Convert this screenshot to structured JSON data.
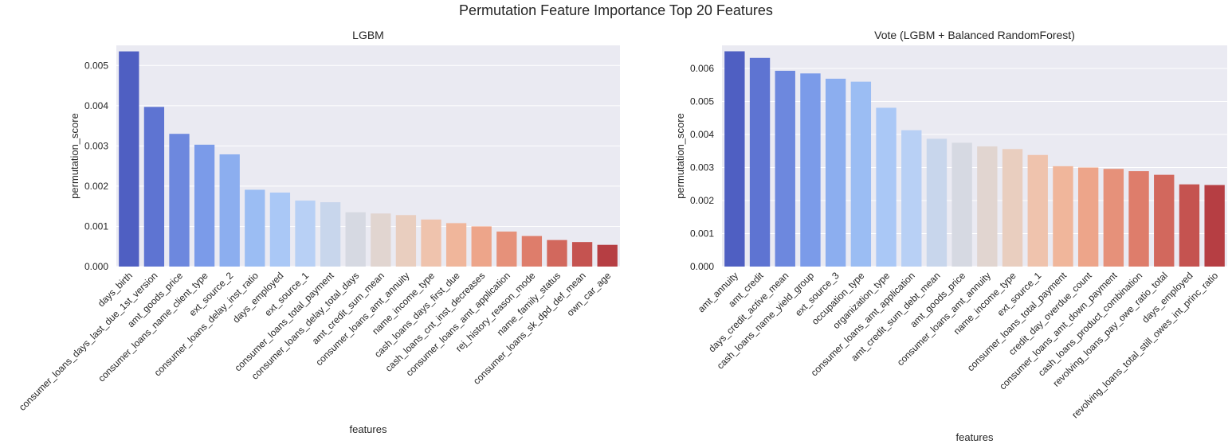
{
  "suptitle": "Permutation Feature Importance Top 20 Features",
  "chart_data": [
    {
      "type": "bar",
      "title": "LGBM",
      "xlabel": "features",
      "ylabel": "permutation_score",
      "ylim": [
        0,
        0.0055
      ],
      "yticks": [
        "0.000",
        "0.001",
        "0.002",
        "0.003",
        "0.004",
        "0.005"
      ],
      "grid": true,
      "categories": [
        "days_birth",
        "consumer_loans_days_last_due_1st_version",
        "amt_goods_price",
        "consumer_loans_name_client_type",
        "ext_source_2",
        "consumer_loans_delay_inst_ratio",
        "days_employed",
        "ext_source_1",
        "consumer_loans_total_payment",
        "consumer_loans_delay_total_days",
        "amt_credit_sum_mean",
        "consumer_loans_amt_annuity",
        "name_income_type",
        "cash_loans_days_first_due",
        "cash_loans_cnt_inst_decreases",
        "consumer_loans_amt_application",
        "rej_history_reason_mode",
        "name_family_status",
        "consumer_loans_sk_dpd_def_mean",
        "own_car_age"
      ],
      "values": [
        0.00535,
        0.00397,
        0.0033,
        0.00303,
        0.00279,
        0.00191,
        0.00184,
        0.00164,
        0.0016,
        0.00135,
        0.00132,
        0.00128,
        0.00117,
        0.00108,
        0.001,
        0.00087,
        0.00076,
        0.00066,
        0.00061,
        0.00054
      ],
      "colors": [
        "#4f5fc2",
        "#5e74d2",
        "#6d88de",
        "#7b9be9",
        "#8caeef",
        "#9bbdf3",
        "#aac8f6",
        "#b8d0f5",
        "#c8d6ec",
        "#d6d9e2",
        "#e1d5d0",
        "#e9cebf",
        "#efc3ad",
        "#f0b69b",
        "#eda58a",
        "#e6917a",
        "#de7d6b",
        "#d2685d",
        "#c55350",
        "#b63e43"
      ]
    },
    {
      "type": "bar",
      "title": "Vote (LGBM + Balanced RandomForest)",
      "xlabel": "features",
      "ylabel": "permutation_score",
      "ylim": [
        0,
        0.0067
      ],
      "yticks": [
        "0.000",
        "0.001",
        "0.002",
        "0.003",
        "0.004",
        "0.005",
        "0.006"
      ],
      "grid": true,
      "categories": [
        "amt_annuity",
        "amt_credit",
        "days_credit_active_mean",
        "cash_loans_name_yield_group",
        "ext_source_3",
        "occupation_type",
        "organization_type",
        "consumer_loans_amt_application",
        "amt_credit_sum_debt_mean",
        "amt_goods_price",
        "consumer_loans_amt_annuity",
        "name_income_type",
        "ext_source_1",
        "consumer_loans_total_payment",
        "credit_day_overdue_count",
        "consumer_loans_amt_down_payment",
        "cash_loans_product_combination",
        "revolving_loans_pay_owe_ratio_total",
        "days_employed",
        "revolving_loans_total_still_owes_int_princ_ratio"
      ],
      "values": [
        0.00652,
        0.00632,
        0.00593,
        0.00585,
        0.00569,
        0.0056,
        0.00481,
        0.00413,
        0.00387,
        0.00375,
        0.00364,
        0.00356,
        0.00338,
        0.00304,
        0.003,
        0.00296,
        0.00289,
        0.00278,
        0.00249,
        0.00247
      ],
      "colors": [
        "#4f5fc2",
        "#5e74d2",
        "#6d88de",
        "#7b9be9",
        "#8caeef",
        "#9bbdf3",
        "#aac8f6",
        "#b8d0f5",
        "#c8d6ec",
        "#d6d9e2",
        "#e1d5d0",
        "#e9cebf",
        "#efc3ad",
        "#f0b69b",
        "#eda58a",
        "#e6917a",
        "#de7d6b",
        "#d2685d",
        "#c55350",
        "#b63e43"
      ]
    }
  ]
}
